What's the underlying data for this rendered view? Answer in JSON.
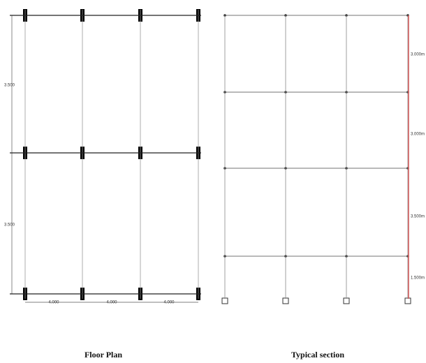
{
  "floor_plan": {
    "title": "Floor Plan",
    "vertical_dimensions": [
      "3.500",
      "3.500"
    ],
    "horizontal_dimensions": [
      "4.000",
      "4.000",
      "4.000"
    ]
  },
  "section": {
    "title": "Typical section",
    "dimensions": [
      "3.000m",
      "3.000m",
      "3.500m",
      "1.500m"
    ]
  }
}
